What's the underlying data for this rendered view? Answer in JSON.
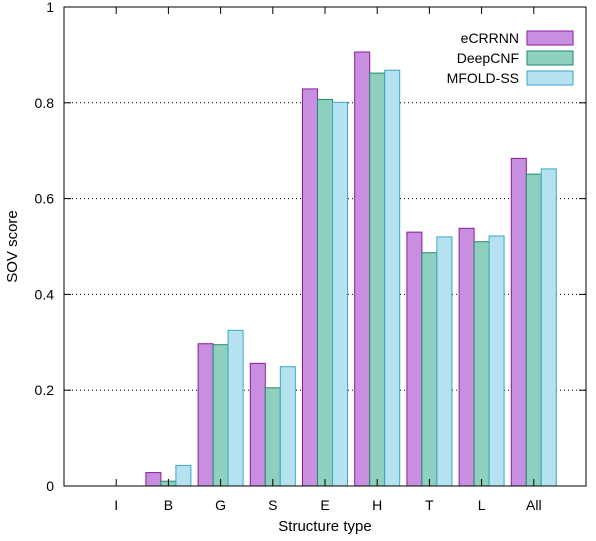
{
  "chart_data": {
    "type": "bar",
    "title": "",
    "xlabel": "Structure type",
    "ylabel": "SOV score",
    "ylim": [
      0,
      1
    ],
    "yticks": [
      "0",
      "0.2",
      "0.4",
      "0.6",
      "0.8",
      "1"
    ],
    "grid": "horizontal dotted",
    "legend_position": "top-right",
    "categories": [
      "I",
      "B",
      "G",
      "S",
      "E",
      "H",
      "T",
      "L",
      "All"
    ],
    "series": [
      {
        "name": "eCRRNN",
        "fill": "#c88fe0",
        "stroke": "#8b1a9e",
        "values": [
          0,
          0.028,
          0.297,
          0.256,
          0.829,
          0.906,
          0.53,
          0.538,
          0.684
        ]
      },
      {
        "name": "DeepCNF",
        "fill": "#8ed0bd",
        "stroke": "#1f8a6e",
        "values": [
          0,
          0.01,
          0.295,
          0.205,
          0.807,
          0.862,
          0.487,
          0.51,
          0.651
        ]
      },
      {
        "name": "MFOLD-SS",
        "fill": "#b6e2f0",
        "stroke": "#3aa6c8",
        "values": [
          0,
          0.043,
          0.325,
          0.249,
          0.801,
          0.868,
          0.52,
          0.522,
          0.662
        ]
      }
    ]
  }
}
